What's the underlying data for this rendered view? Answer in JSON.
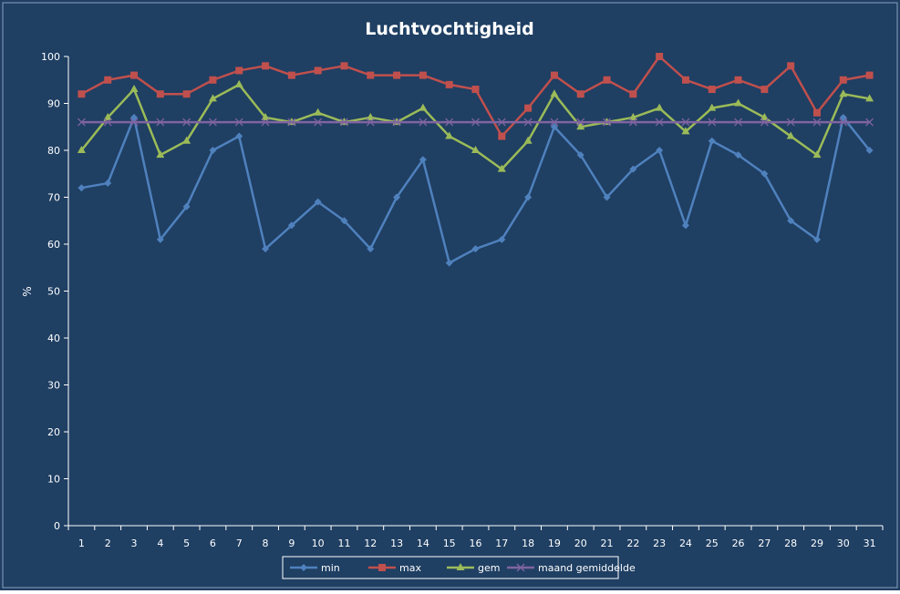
{
  "chart_data": {
    "type": "line",
    "title": "Luchtvochtigheid",
    "xlabel": "",
    "ylabel": "%",
    "ylim": [
      0,
      100
    ],
    "yticks": [
      0,
      10,
      20,
      30,
      40,
      50,
      60,
      70,
      80,
      90,
      100
    ],
    "categories": [
      "1",
      "2",
      "3",
      "4",
      "5",
      "6",
      "7",
      "8",
      "9",
      "10",
      "11",
      "12",
      "13",
      "14",
      "15",
      "16",
      "17",
      "18",
      "19",
      "20",
      "21",
      "22",
      "23",
      "24",
      "25",
      "26",
      "27",
      "28",
      "29",
      "30",
      "31"
    ],
    "grid": false,
    "legend_position": "bottom",
    "series": [
      {
        "name": "min",
        "color": "#4f81bd",
        "marker": "diamond",
        "values": [
          72,
          73,
          87,
          61,
          68,
          80,
          83,
          59,
          64,
          69,
          65,
          59,
          70,
          78,
          56,
          59,
          61,
          70,
          85,
          79,
          70,
          76,
          80,
          64,
          82,
          79,
          75,
          65,
          61,
          87,
          80
        ]
      },
      {
        "name": "max",
        "color": "#c0504d",
        "marker": "square",
        "values": [
          92,
          95,
          96,
          92,
          92,
          95,
          97,
          98,
          96,
          97,
          98,
          96,
          96,
          96,
          94,
          93,
          83,
          89,
          96,
          92,
          95,
          92,
          100,
          95,
          93,
          95,
          93,
          98,
          88,
          95,
          96
        ]
      },
      {
        "name": "gem",
        "color": "#9bbb59",
        "marker": "triangle",
        "values": [
          80,
          87,
          93,
          79,
          82,
          91,
          94,
          87,
          86,
          88,
          86,
          87,
          86,
          89,
          83,
          80,
          76,
          82,
          92,
          85,
          86,
          87,
          89,
          84,
          89,
          90,
          87,
          83,
          79,
          92,
          91
        ]
      },
      {
        "name": "maand gemiddelde",
        "color": "#8064a2",
        "marker": "x",
        "values": [
          86,
          86,
          86,
          86,
          86,
          86,
          86,
          86,
          86,
          86,
          86,
          86,
          86,
          86,
          86,
          86,
          86,
          86,
          86,
          86,
          86,
          86,
          86,
          86,
          86,
          86,
          86,
          86,
          86,
          86,
          86
        ]
      }
    ]
  },
  "colors": {
    "background": "#1f3f63",
    "axis": "#ffffff",
    "text": "#ffffff"
  }
}
